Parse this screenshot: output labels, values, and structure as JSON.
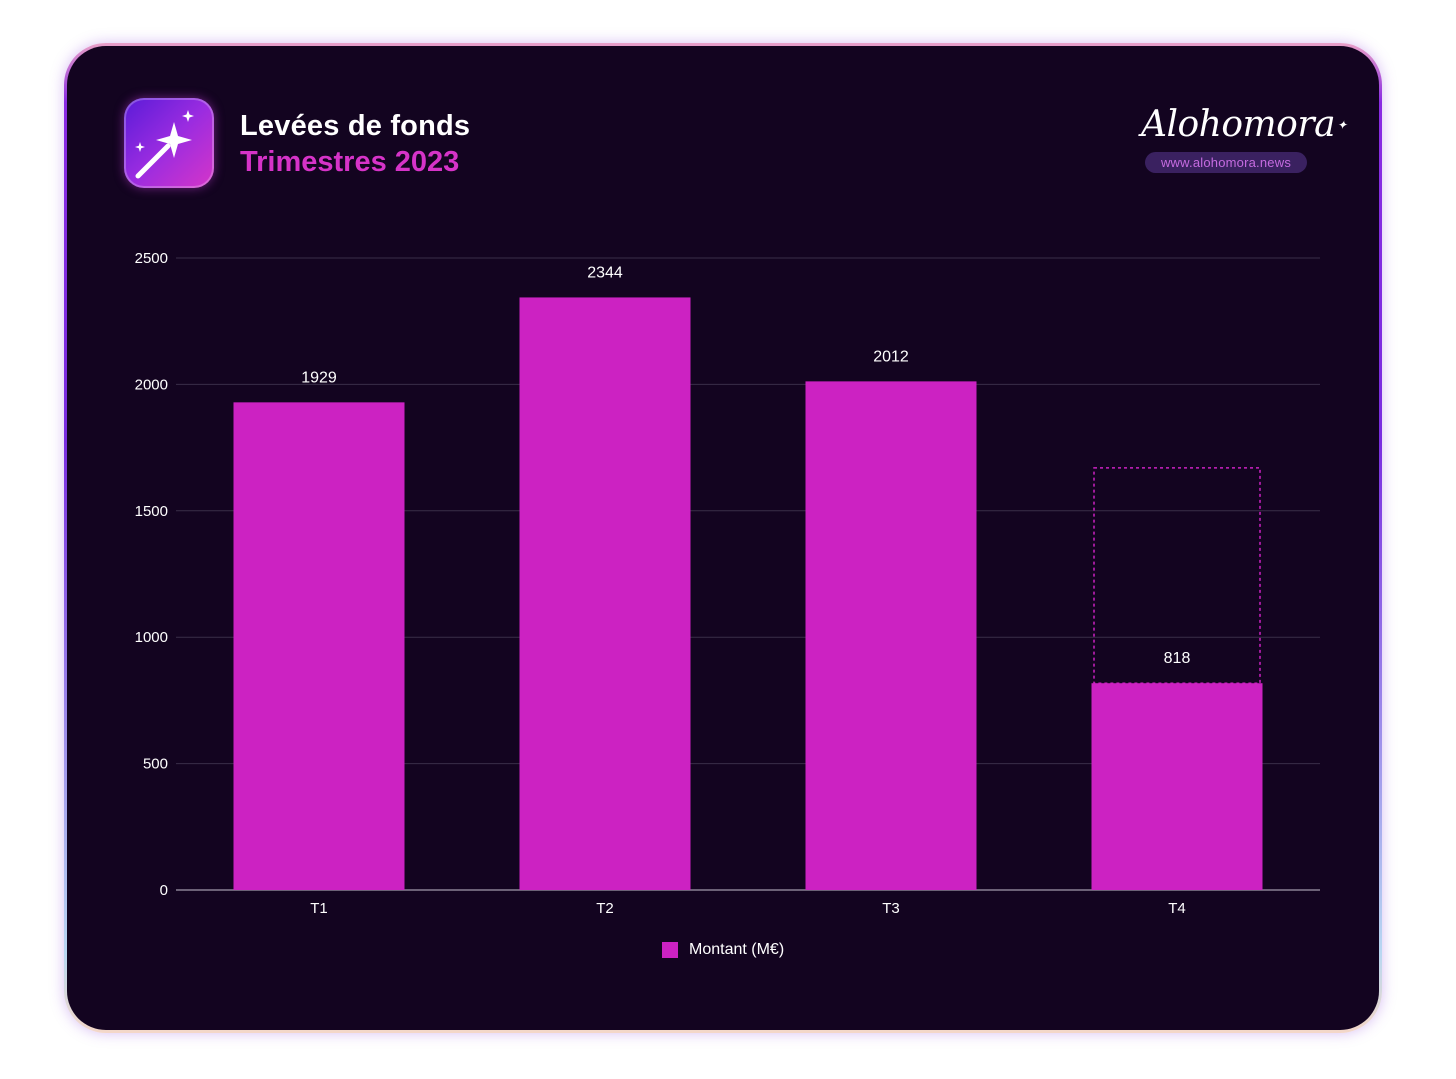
{
  "header": {
    "title": "Levées de fonds",
    "subtitle": "Trimestres 2023",
    "app_icon": "magic-wand-icon"
  },
  "brand": {
    "logo_text": "Alohomora",
    "url": "www.alohomora.news"
  },
  "colors": {
    "background": "#130420",
    "bar": "#cc22c2",
    "accent": "#d633c8",
    "gridline": "#3a2e48"
  },
  "chart_data": {
    "type": "bar",
    "title": "Levées de fonds",
    "subtitle": "Trimestres 2023",
    "categories": [
      "T1",
      "T2",
      "T3",
      "T4"
    ],
    "series": [
      {
        "name": "Montant (M€)",
        "values": [
          1929,
          2344,
          2012,
          818
        ]
      }
    ],
    "data_labels": [
      "1929",
      "2344",
      "2012",
      "818"
    ],
    "y_ticks": [
      0,
      500,
      1000,
      1500,
      2000,
      2500
    ],
    "ylim": [
      0,
      2500
    ],
    "grid": true,
    "legend": "bottom",
    "annotation": {
      "category": "T4",
      "type": "dashed-outline",
      "level": 1670
    }
  }
}
